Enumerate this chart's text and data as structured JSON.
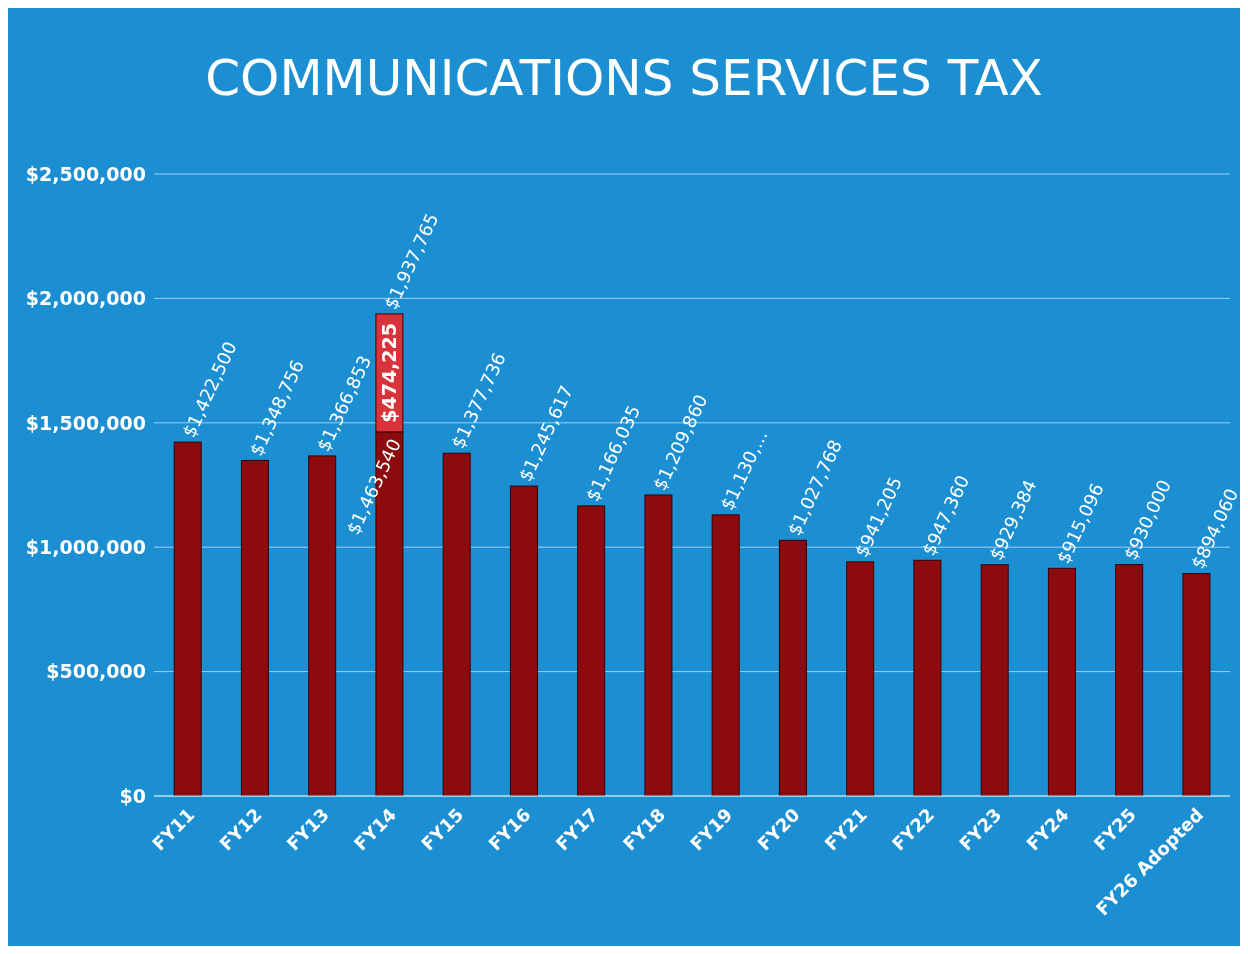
{
  "chart_data": {
    "type": "bar",
    "title": "COMMUNICATIONS SERVICES TAX",
    "stacked": true,
    "grid": "y",
    "categories": [
      "FY11",
      "FY12",
      "FY13",
      "FY14",
      "FY15",
      "FY16",
      "FY17",
      "FY18",
      "FY19",
      "FY20",
      "FY21",
      "FY22",
      "FY23",
      "FY24",
      "FY25",
      "FY26 Adopted"
    ],
    "series": [
      {
        "color": "#8b0b0e",
        "values": [
          1422500,
          1348756,
          1366853,
          1463540,
          1377736,
          1245617,
          1166035,
          1209860,
          1130000,
          1027768,
          941205,
          947360,
          929384,
          915096,
          930000,
          894060
        ],
        "value_labels": [
          "$1,422,500",
          "$1,348,756",
          "$1,366,853",
          "$1,463,540",
          "$1,377,736",
          "$1,245,617",
          "$1,166,035",
          "$1,209,860",
          "$1,130,...",
          "$1,027,768",
          "$941,205",
          "$947,360",
          "$929,384",
          "$915,096",
          "$930,000",
          "$894,060"
        ]
      },
      {
        "color": "#d8333b",
        "values": [
          null,
          null,
          null,
          474225,
          null,
          null,
          null,
          null,
          null,
          null,
          null,
          null,
          null,
          null,
          null,
          null
        ],
        "value_labels": [
          null,
          null,
          null,
          "$474,225",
          null,
          null,
          null,
          null,
          null,
          null,
          null,
          null,
          null,
          null,
          null,
          null
        ]
      }
    ],
    "totals": [
      null,
      null,
      null,
      "$1,937,765",
      null,
      null,
      null,
      null,
      null,
      null,
      null,
      null,
      null,
      null,
      null,
      null
    ],
    "ylim": [
      0,
      2500000
    ],
    "yticks": [
      {
        "value": 0,
        "label": "$0"
      },
      {
        "value": 500000,
        "label": "$500,000"
      },
      {
        "value": 1000000,
        "label": "$1,000,000"
      },
      {
        "value": 1500000,
        "label": "$1,500,000"
      },
      {
        "value": 2000000,
        "label": "$2,000,000"
      },
      {
        "value": 2500000,
        "label": "$2,500,000"
      }
    ]
  }
}
